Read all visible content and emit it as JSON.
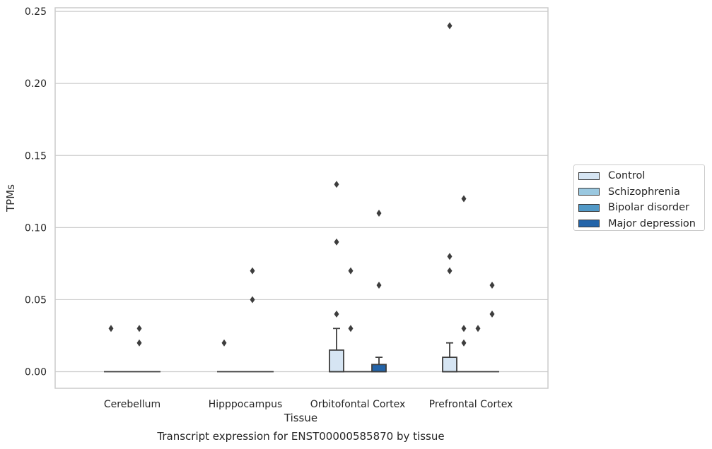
{
  "chart_data": {
    "type": "box",
    "title": "Transcript expression for ENST00000585870 by tissue",
    "xlabel": "Tissue",
    "ylabel": "TPMs",
    "ylim": [
      -0.0115,
      0.2525
    ],
    "yticks": [
      0.0,
      0.05,
      0.1,
      0.15,
      0.2,
      0.25
    ],
    "ytick_labels": [
      "0.00",
      "0.05",
      "0.10",
      "0.15",
      "0.20",
      "0.25"
    ],
    "grid": "horizontal",
    "legend_position": "right",
    "categories": [
      "Cerebellum",
      "Hipppocampus",
      "Orbitofontal Cortex",
      "Prefrontal Cortex"
    ],
    "series": [
      {
        "name": "Control",
        "color": "#d6e5f3",
        "boxes": [
          {
            "q1": 0,
            "median": 0,
            "q3": 0,
            "whislo": 0,
            "whishi": 0,
            "fliers": [
              0.03
            ]
          },
          {
            "q1": 0,
            "median": 0,
            "q3": 0,
            "whislo": 0,
            "whishi": 0,
            "fliers": [
              0.02
            ]
          },
          {
            "q1": 0,
            "median": 0,
            "q3": 0.015,
            "whislo": 0,
            "whishi": 0.03,
            "fliers": [
              0.04,
              0.09,
              0.13
            ]
          },
          {
            "q1": 0,
            "median": 0,
            "q3": 0.01,
            "whislo": 0,
            "whishi": 0.02,
            "fliers": [
              0.07,
              0.08,
              0.24
            ]
          }
        ]
      },
      {
        "name": "Schizophrenia",
        "color": "#9ac8e0",
        "boxes": [
          {
            "q1": 0,
            "median": 0,
            "q3": 0,
            "whislo": 0,
            "whishi": 0,
            "fliers": []
          },
          {
            "q1": 0,
            "median": 0,
            "q3": 0,
            "whislo": 0,
            "whishi": 0,
            "fliers": []
          },
          {
            "q1": 0,
            "median": 0,
            "q3": 0,
            "whislo": 0,
            "whishi": 0,
            "fliers": [
              0.03,
              0.07
            ]
          },
          {
            "q1": 0,
            "median": 0,
            "q3": 0,
            "whislo": 0,
            "whishi": 0,
            "fliers": [
              0.02,
              0.03,
              0.12
            ]
          }
        ]
      },
      {
        "name": "Bipolar disorder",
        "color": "#5199c7",
        "boxes": [
          {
            "q1": 0,
            "median": 0,
            "q3": 0,
            "whislo": 0,
            "whishi": 0,
            "fliers": [
              0.02,
              0.03
            ]
          },
          {
            "q1": 0,
            "median": 0,
            "q3": 0,
            "whislo": 0,
            "whishi": 0,
            "fliers": [
              0.05,
              0.07
            ]
          },
          {
            "q1": 0,
            "median": 0,
            "q3": 0,
            "whislo": 0,
            "whishi": 0,
            "fliers": []
          },
          {
            "q1": 0,
            "median": 0,
            "q3": 0,
            "whislo": 0,
            "whishi": 0,
            "fliers": [
              0.03
            ]
          }
        ]
      },
      {
        "name": "Major depression",
        "color": "#2364a9",
        "boxes": [
          {
            "q1": 0,
            "median": 0,
            "q3": 0,
            "whislo": 0,
            "whishi": 0,
            "fliers": []
          },
          {
            "q1": 0,
            "median": 0,
            "q3": 0,
            "whislo": 0,
            "whishi": 0,
            "fliers": []
          },
          {
            "q1": 0,
            "median": 0,
            "q3": 0.005,
            "whislo": 0,
            "whishi": 0.01,
            "fliers": [
              0.06,
              0.11
            ]
          },
          {
            "q1": 0,
            "median": 0,
            "q3": 0,
            "whislo": 0,
            "whishi": 0,
            "fliers": [
              0.04,
              0.06
            ]
          }
        ]
      }
    ]
  }
}
